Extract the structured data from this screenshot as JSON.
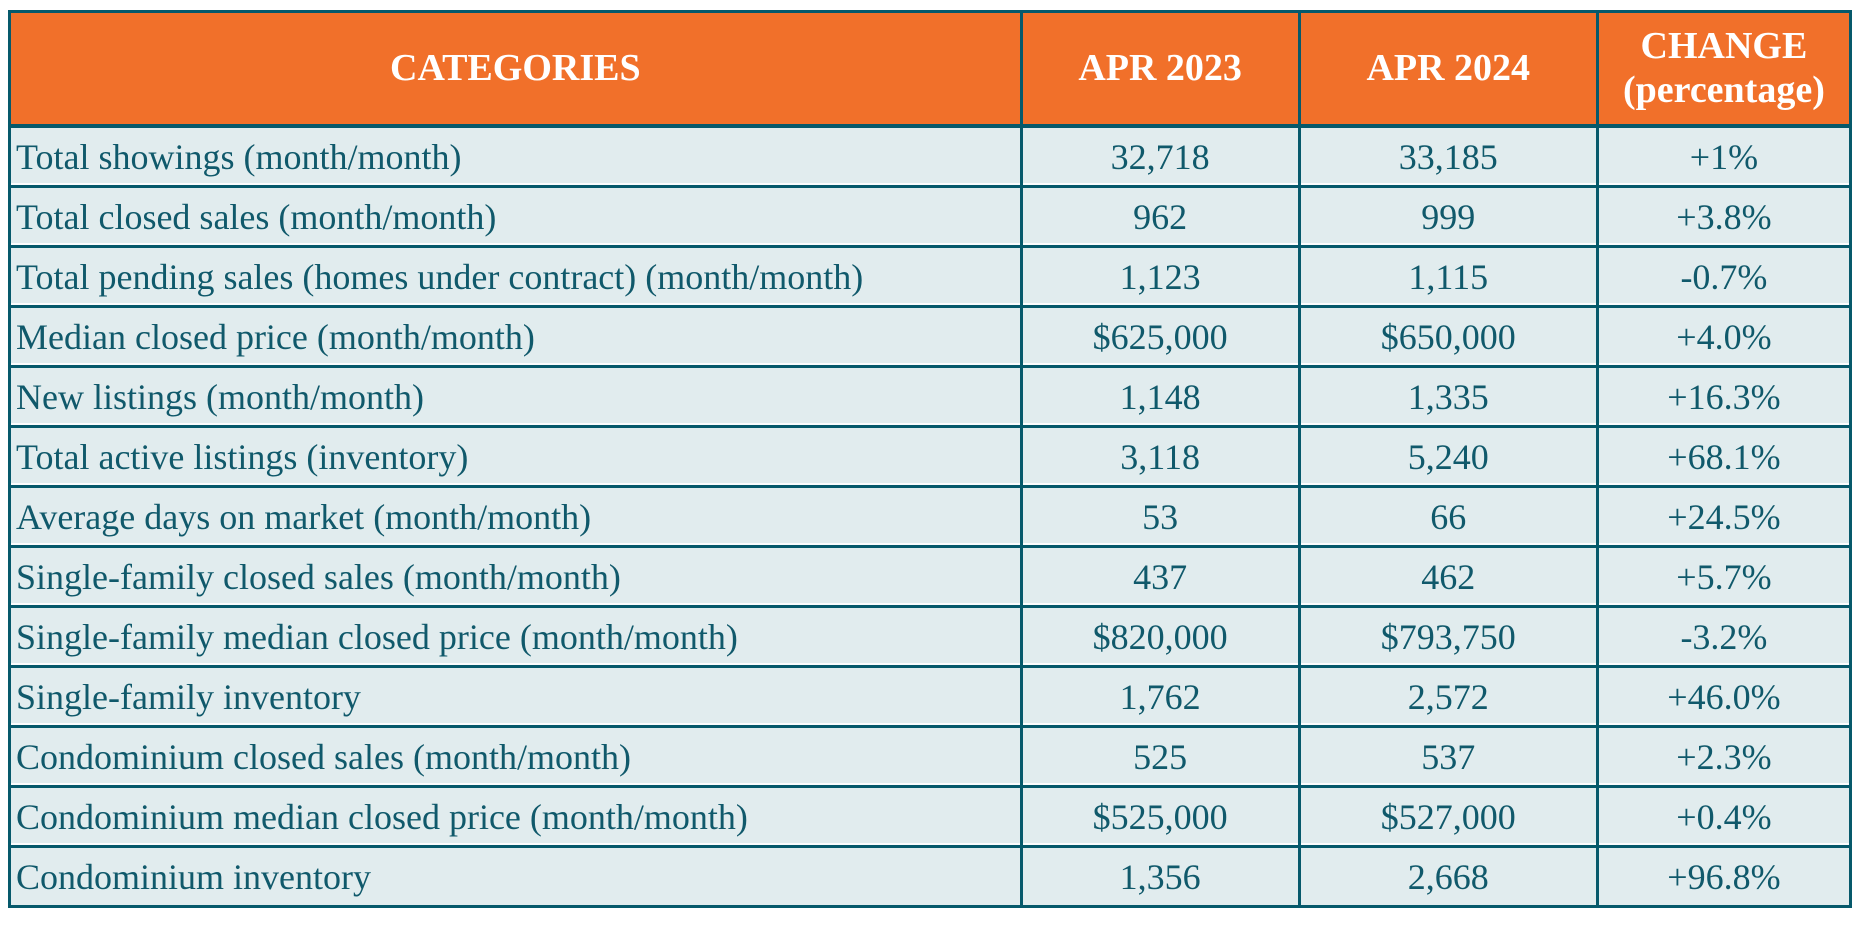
{
  "chart_data": {
    "type": "table",
    "columns": [
      "CATEGORIES",
      "APR 2023",
      "APR 2024",
      "CHANGE (percentage)"
    ],
    "column_headers": [
      {
        "label": "CATEGORIES",
        "sub": ""
      },
      {
        "label": "APR 2023",
        "sub": ""
      },
      {
        "label": "APR 2024",
        "sub": ""
      },
      {
        "label": "CHANGE",
        "sub": "(percentage)"
      }
    ],
    "rows": [
      {
        "category": "Total showings (month/month)",
        "apr_2023": "32,718",
        "apr_2024": "33,185",
        "change": "+1%"
      },
      {
        "category": "Total closed sales (month/month)",
        "apr_2023": "962",
        "apr_2024": "999",
        "change": "+3.8%"
      },
      {
        "category": "Total pending sales (homes under contract) (month/month)",
        "apr_2023": "1,123",
        "apr_2024": "1,115",
        "change": "-0.7%"
      },
      {
        "category": "Median closed price (month/month)",
        "apr_2023": "$625,000",
        "apr_2024": "$650,000",
        "change": "+4.0%"
      },
      {
        "category": "New listings (month/month)",
        "apr_2023": "1,148",
        "apr_2024": "1,335",
        "change": "+16.3%"
      },
      {
        "category": "Total active listings (inventory)",
        "apr_2023": "3,118",
        "apr_2024": "5,240",
        "change": "+68.1%"
      },
      {
        "category": "Average days on market (month/month)",
        "apr_2023": "53",
        "apr_2024": "66",
        "change": "+24.5%"
      },
      {
        "category": "Single-family closed sales (month/month)",
        "apr_2023": "437",
        "apr_2024": "462",
        "change": "+5.7%"
      },
      {
        "category": "Single-family median closed price (month/month)",
        "apr_2023": "$820,000",
        "apr_2024": "$793,750",
        "change": "-3.2%"
      },
      {
        "category": "Single-family inventory",
        "apr_2023": "1,762",
        "apr_2024": "2,572",
        "change": "+46.0%"
      },
      {
        "category": "Condominium closed sales (month/month)",
        "apr_2023": "525",
        "apr_2024": "537",
        "change": "+2.3%"
      },
      {
        "category": "Condominium median closed price (month/month)",
        "apr_2023": "$525,000",
        "apr_2024": "$527,000",
        "change": "+0.4%"
      },
      {
        "category": "Condominium inventory",
        "apr_2023": "1,356",
        "apr_2024": "2,668",
        "change": "+96.8%"
      }
    ]
  },
  "colors": {
    "header_bg": "#F1702A",
    "header_text": "#FFFFFF",
    "border": "#06596B",
    "row_bg": "#E1ECEE",
    "body_text": "#10596B",
    "page_bg": "#FFFFFF"
  }
}
